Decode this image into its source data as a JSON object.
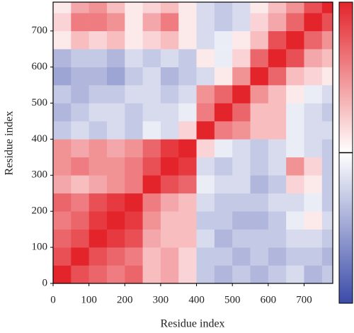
{
  "chart_data": {
    "type": "heatmap",
    "xlabel": "Residue index",
    "ylabel": "Residue index",
    "xlim": [
      0,
      780
    ],
    "ylim": [
      0,
      780
    ],
    "xticks": [
      0,
      100,
      200,
      300,
      400,
      500,
      600,
      700
    ],
    "yticks": [
      0,
      100,
      200,
      300,
      400,
      500,
      600,
      700
    ],
    "xbins": [
      0,
      50,
      100,
      150,
      200,
      250,
      300,
      350,
      400,
      450,
      500,
      550,
      600,
      650,
      700,
      750,
      780
    ],
    "ybins": [
      0,
      50,
      100,
      150,
      200,
      250,
      300,
      350,
      400,
      450,
      500,
      550,
      600,
      650,
      700,
      750,
      780
    ],
    "zlim": [
      -1,
      1
    ],
    "colors": [
      "#3b4ba8",
      "#ffffff",
      "#e3242b"
    ],
    "values": [
      [
        1,
        0.8,
        0.7,
        0.6,
        0.7,
        0.3,
        0.4,
        0.2,
        -0.3,
        -0.4,
        -0.3,
        -0.4,
        -0.3,
        -0.2,
        -0.4,
        -0.3
      ],
      [
        0.8,
        1,
        0.8,
        0.7,
        0.6,
        0.3,
        0.4,
        0.2,
        -0.3,
        -0.3,
        -0.4,
        -0.3,
        -0.4,
        -0.3,
        -0.3,
        -0.4
      ],
      [
        0.7,
        0.8,
        1,
        0.9,
        0.8,
        0.4,
        0.3,
        0.3,
        -0.2,
        -0.4,
        -0.3,
        -0.3,
        -0.3,
        -0.2,
        -0.2,
        -0.3
      ],
      [
        0.6,
        0.7,
        0.9,
        1,
        0.9,
        0.5,
        0.3,
        0.3,
        -0.3,
        -0.3,
        -0.4,
        -0.4,
        -0.3,
        -0.1,
        0.1,
        -0.2
      ],
      [
        0.7,
        0.6,
        0.8,
        0.9,
        1,
        0.6,
        0.4,
        0.3,
        -0.2,
        -0.3,
        -0.3,
        -0.3,
        -0.2,
        -0.2,
        -0.1,
        -0.3
      ],
      [
        0.4,
        0.3,
        0.4,
        0.5,
        0.6,
        1,
        0.8,
        0.7,
        -0.1,
        -0.2,
        -0.2,
        -0.4,
        -0.3,
        0.2,
        0.1,
        -0.3
      ],
      [
        0.5,
        0.6,
        0.5,
        0.5,
        0.6,
        0.8,
        1,
        0.9,
        -0.2,
        -0.3,
        -0.2,
        -0.3,
        -0.2,
        0.5,
        0.2,
        -0.3
      ],
      [
        0.5,
        0.4,
        0.5,
        0.4,
        0.5,
        0.7,
        0.9,
        1,
        0.2,
        -0.1,
        -0.2,
        -0.3,
        -0.2,
        -0.1,
        -0.2,
        -0.3
      ],
      [
        -0.3,
        -0.2,
        -0.3,
        -0.2,
        -0.3,
        -0.1,
        -0.2,
        0.2,
        1,
        0.6,
        0.5,
        0.3,
        0.3,
        -0.1,
        -0.2,
        -0.2
      ],
      [
        -0.4,
        -0.3,
        -0.2,
        -0.2,
        -0.3,
        -0.2,
        -0.2,
        -0.1,
        0.6,
        1,
        0.7,
        0.3,
        0.3,
        -0.1,
        -0.2,
        -0.3
      ],
      [
        -0.3,
        -0.4,
        -0.3,
        -0.3,
        -0.2,
        -0.2,
        -0.3,
        -0.2,
        0.5,
        0.7,
        1,
        0.5,
        0.3,
        0.1,
        -0.1,
        -0.2
      ],
      [
        -0.5,
        -0.4,
        -0.4,
        -0.5,
        -0.3,
        -0.2,
        -0.4,
        -0.3,
        -0.2,
        0.1,
        0.5,
        1,
        0.7,
        0.3,
        0.2,
        0.1
      ],
      [
        -0.4,
        -0.3,
        -0.3,
        -0.4,
        -0.2,
        -0.3,
        -0.2,
        -0.3,
        0.1,
        -0.1,
        0.2,
        0.7,
        1,
        0.8,
        0.4,
        0.3
      ],
      [
        0.1,
        0.3,
        0.2,
        0.3,
        0.1,
        0.2,
        0.3,
        0.1,
        -0.2,
        -0.1,
        0.1,
        0.3,
        0.8,
        1,
        0.7,
        0.5
      ],
      [
        0.2,
        0.6,
        0.6,
        0.5,
        0.1,
        0.4,
        0.6,
        0.1,
        -0.2,
        -0.3,
        -0.2,
        0.2,
        0.4,
        0.7,
        1,
        0.8
      ],
      [
        0.1,
        0.4,
        0.5,
        0.3,
        0.1,
        0.2,
        0.3,
        0.1,
        -0.2,
        -0.3,
        -0.2,
        0.1,
        0.3,
        0.5,
        0.8,
        1
      ]
    ]
  }
}
